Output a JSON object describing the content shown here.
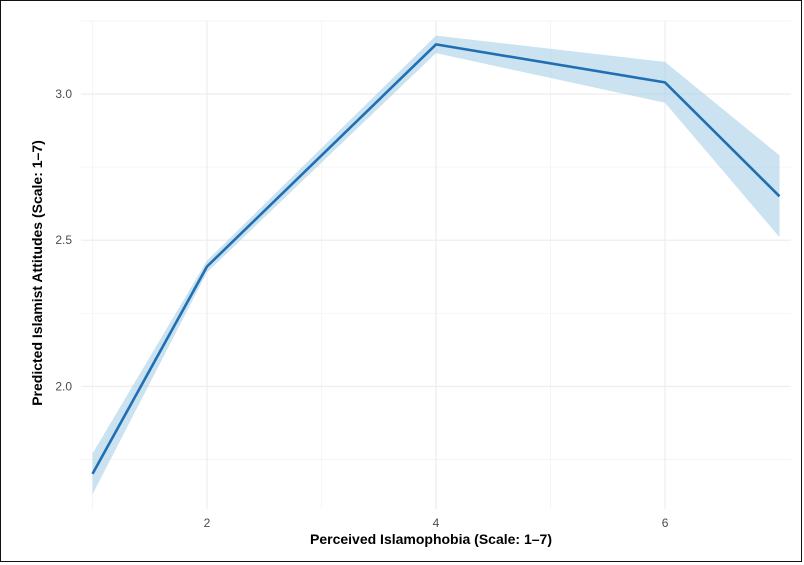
{
  "chart_data": {
    "type": "line",
    "title": "",
    "xlabel": "Perceived Islamophobia (Scale: 1–7)",
    "ylabel": "Predicted Islamist Attitudes (Scale: 1–7)",
    "xlim": [
      0.9,
      7.1
    ],
    "ylim": [
      1.58,
      3.25
    ],
    "x_ticks": [
      2,
      4,
      6
    ],
    "x_tick_labels": [
      "2",
      "4",
      "6"
    ],
    "y_ticks": [
      2.0,
      2.5,
      3.0
    ],
    "y_tick_labels": [
      "2.0",
      "2.5",
      "3.0"
    ],
    "grid": true,
    "series": [
      {
        "x": [
          1,
          2,
          4,
          6,
          7
        ],
        "y": [
          1.7,
          2.41,
          3.17,
          3.04,
          2.65
        ],
        "lower": [
          1.63,
          2.39,
          3.14,
          2.97,
          2.51
        ],
        "upper": [
          1.77,
          2.43,
          3.2,
          3.11,
          2.79
        ],
        "color": "#1f6fb2",
        "band_color": "#a8cfe8"
      }
    ]
  }
}
